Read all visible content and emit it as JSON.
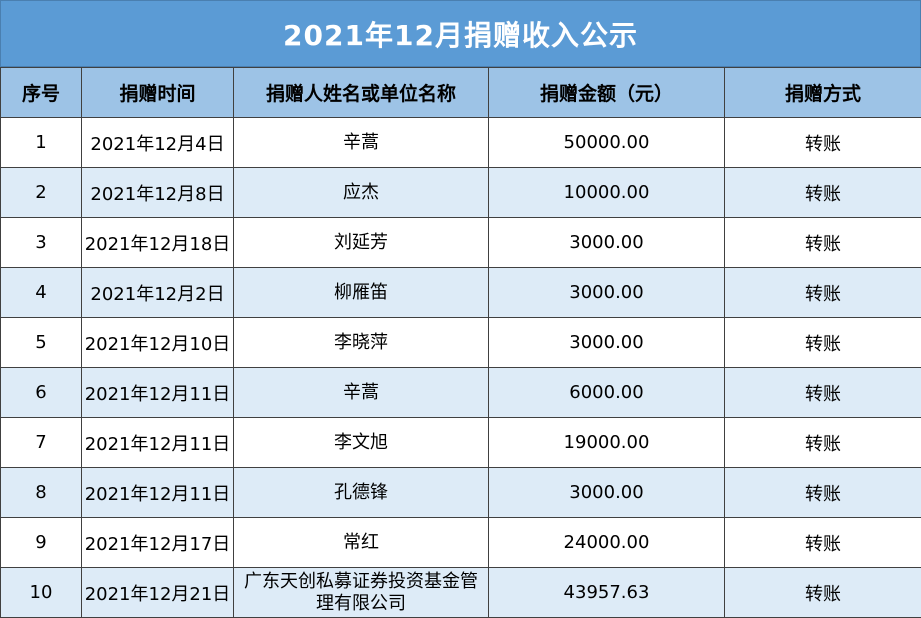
{
  "title": "2021年12月捐赠收入公示",
  "headers": {
    "no": "序号",
    "date": "捐赠时间",
    "name": "捐赠人姓名或单位名称",
    "amount": "捐赠金额（元）",
    "method": "捐赠方式"
  },
  "rows": [
    {
      "no": "1",
      "date": "2021年12月4日",
      "name": "辛蒿",
      "amount": "50000.00",
      "method": "转账"
    },
    {
      "no": "2",
      "date": "2021年12月8日",
      "name": "应杰",
      "amount": "10000.00",
      "method": "转账"
    },
    {
      "no": "3",
      "date": "2021年12月18日",
      "name": "刘延芳",
      "amount": "3000.00",
      "method": "转账"
    },
    {
      "no": "4",
      "date": "2021年12月2日",
      "name": "柳雁笛",
      "amount": "3000.00",
      "method": "转账"
    },
    {
      "no": "5",
      "date": "2021年12月10日",
      "name": "李晓萍",
      "amount": "3000.00",
      "method": "转账"
    },
    {
      "no": "6",
      "date": "2021年12月11日",
      "name": "辛蒿",
      "amount": "6000.00",
      "method": "转账"
    },
    {
      "no": "7",
      "date": "2021年12月11日",
      "name": "李文旭",
      "amount": "19000.00",
      "method": "转账"
    },
    {
      "no": "8",
      "date": "2021年12月11日",
      "name": "孔德锋",
      "amount": "3000.00",
      "method": "转账"
    },
    {
      "no": "9",
      "date": "2021年12月17日",
      "name": "常红",
      "amount": "24000.00",
      "method": "转账"
    },
    {
      "no": "10",
      "date": "2021年12月21日",
      "name": "广东天创私募证券投资基金管理有限公司",
      "amount": "43957.63",
      "method": "转账"
    }
  ]
}
